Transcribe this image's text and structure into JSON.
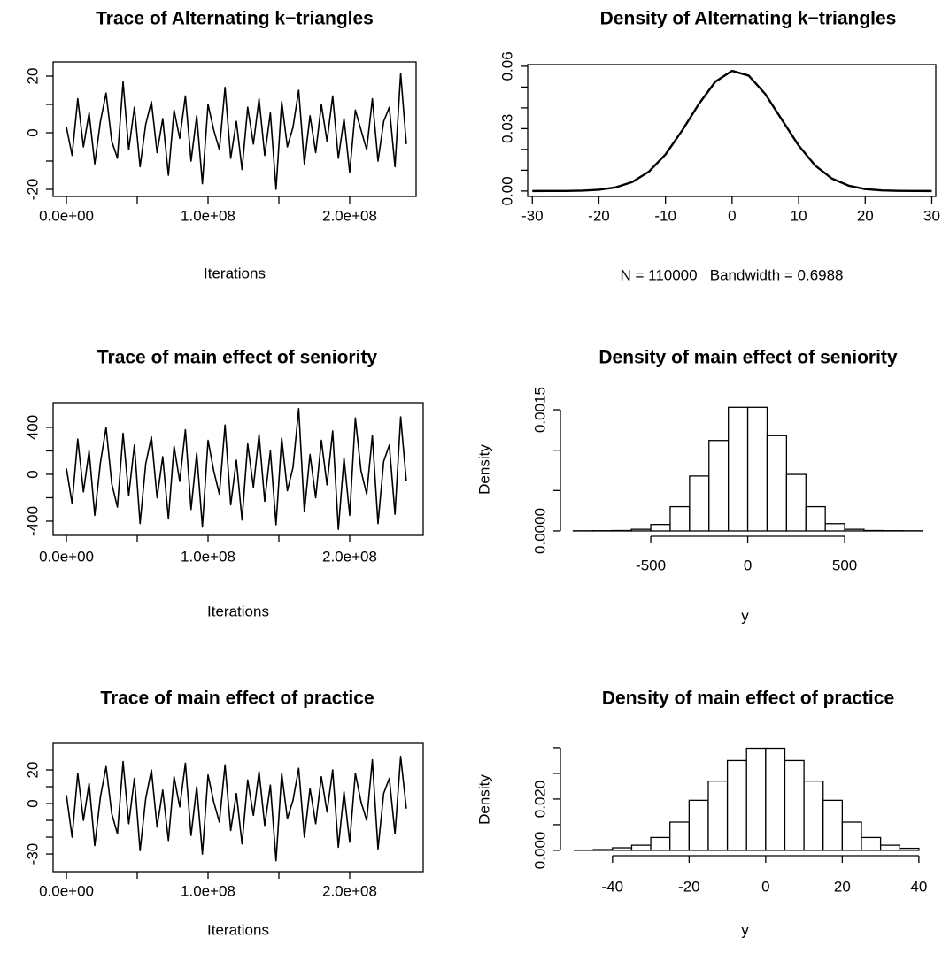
{
  "chart_data": [
    {
      "type": "line",
      "title": "Trace of Alternating k−triangles",
      "xlabel": "Iterations",
      "color": "#000000",
      "x": [
        0,
        4000000.0,
        8000000.0,
        12000000.0,
        16000000.0,
        20000000.0,
        24000000.0,
        28000000.0,
        32000000.0,
        36000000.0,
        40000000.0,
        44000000.0,
        48000000.0,
        52000000.0,
        56000000.0,
        60000000.0,
        64000000.0,
        68000000.0,
        72000000.0,
        76000000.0,
        80000000.0,
        84000000.0,
        88000000.0,
        92000000.0,
        96000000.0,
        100000000.0,
        104000000.0,
        108000000.0,
        112000000.0,
        116000000.0,
        120000000.0,
        124000000.0,
        128000000.0,
        132000000.0,
        136000000.0,
        140000000.0,
        144000000.0,
        148000000.0,
        152000000.0,
        156000000.0,
        160000000.0,
        164000000.0,
        168000000.0,
        172000000.0,
        176000000.0,
        180000000.0,
        184000000.0,
        188000000.0,
        192000000.0,
        196000000.0,
        200000000.0,
        204000000.0,
        208000000.0,
        212000000.0,
        216000000.0,
        220000000.0,
        224000000.0,
        228000000.0,
        232000000.0,
        236000000.0,
        240000000.0
      ],
      "values": [
        2,
        -8,
        12,
        -5,
        7,
        -11,
        4,
        14,
        -3,
        -9,
        18,
        -6,
        9,
        -12,
        3,
        11,
        -7,
        5,
        -15,
        8,
        -2,
        13,
        -10,
        6,
        -18,
        10,
        1,
        -6,
        16,
        -9,
        4,
        -13,
        9,
        -4,
        12,
        -8,
        7,
        -20,
        11,
        -5,
        2,
        15,
        -11,
        6,
        -7,
        10,
        -3,
        13,
        -9,
        5,
        -14,
        8,
        1,
        -6,
        12,
        -10,
        4,
        9,
        -12,
        21,
        -4
      ],
      "xlim": [
        -9400000,
        246900000
      ],
      "ylim": [
        -22.5,
        25
      ],
      "xticks": [
        {
          "value": 0,
          "label": "0.0e+00"
        },
        {
          "value": 100000000,
          "label": "1.0e+08"
        },
        {
          "value": 200000000,
          "label": "2.0e+08"
        }
      ],
      "xminorticks": [
        50000000,
        150000000
      ],
      "yticks": [
        -20,
        0,
        20
      ],
      "yminorticks": [
        -10,
        10
      ]
    },
    {
      "type": "line",
      "title": "Density of Alternating k−triangles",
      "xlabel": "N = 110000   Bandwidth = 0.6988",
      "color": "#000000",
      "x": [
        -30,
        -27.5,
        -25,
        -22.5,
        -20,
        -17.5,
        -15,
        -12.5,
        -10,
        -7.5,
        -5,
        -2.5,
        0,
        2.5,
        5,
        7.5,
        10,
        12.5,
        15,
        17.5,
        20,
        22.5,
        25,
        27.5,
        30
      ],
      "values": [
        2.5e-06,
        1.2e-05,
        5e-05,
        0.00019,
        0.00062,
        0.00175,
        0.0043,
        0.0093,
        0.0176,
        0.0291,
        0.0418,
        0.0526,
        0.0578,
        0.0555,
        0.0466,
        0.0342,
        0.0219,
        0.0122,
        0.006,
        0.0026,
        0.00095,
        0.00031,
        9e-05,
        2e-05,
        5e-06
      ],
      "xlim": [
        -30.7,
        30.6
      ],
      "ylim": [
        -0.0026,
        0.0608
      ],
      "xticks": [
        -30,
        -20,
        -10,
        0,
        10,
        20,
        30
      ],
      "yticks": [
        {
          "value": 0,
          "label": "0.00"
        },
        {
          "value": 0.03,
          "label": "0.03"
        },
        {
          "value": 0.06,
          "label": "0.06"
        }
      ],
      "yminorticks": [
        0.01,
        0.02,
        0.04,
        0.05
      ]
    },
    {
      "type": "line",
      "title": "Trace of main effect of seniority",
      "xlabel": "Iterations",
      "color": "#000000",
      "x": [
        0,
        4000000.0,
        8000000.0,
        12000000.0,
        16000000.0,
        20000000.0,
        24000000.0,
        28000000.0,
        32000000.0,
        36000000.0,
        40000000.0,
        44000000.0,
        48000000.0,
        52000000.0,
        56000000.0,
        60000000.0,
        64000000.0,
        68000000.0,
        72000000.0,
        76000000.0,
        80000000.0,
        84000000.0,
        88000000.0,
        92000000.0,
        96000000.0,
        100000000.0,
        104000000.0,
        108000000.0,
        112000000.0,
        116000000.0,
        120000000.0,
        124000000.0,
        128000000.0,
        132000000.0,
        136000000.0,
        140000000.0,
        144000000.0,
        148000000.0,
        152000000.0,
        156000000.0,
        160000000.0,
        164000000.0,
        168000000.0,
        172000000.0,
        176000000.0,
        180000000.0,
        184000000.0,
        188000000.0,
        192000000.0,
        196000000.0,
        200000000.0,
        204000000.0,
        208000000.0,
        212000000.0,
        216000000.0,
        220000000.0,
        224000000.0,
        228000000.0,
        232000000.0,
        236000000.0,
        240000000.0
      ],
      "values": [
        50,
        -250,
        300,
        -150,
        200,
        -350,
        100,
        400,
        -80,
        -280,
        350,
        -180,
        250,
        -420,
        90,
        320,
        -200,
        150,
        -380,
        240,
        -60,
        380,
        -300,
        180,
        -450,
        290,
        30,
        -170,
        420,
        -260,
        120,
        -390,
        260,
        -110,
        340,
        -230,
        200,
        -430,
        310,
        -140,
        60,
        560,
        -320,
        170,
        -200,
        290,
        -90,
        370,
        -470,
        140,
        -350,
        480,
        30,
        -170,
        330,
        -420,
        110,
        250,
        -340,
        490,
        -60
      ],
      "xlim": [
        -9400000,
        251900000
      ],
      "ylim": [
        -521,
        611
      ],
      "xticks": [
        {
          "value": 0,
          "label": "0.0e+00"
        },
        {
          "value": 100000000,
          "label": "1.0e+08"
        },
        {
          "value": 200000000,
          "label": "2.0e+08"
        }
      ],
      "xminorticks": [
        50000000,
        150000000
      ],
      "yticks": [
        -400,
        0,
        400
      ],
      "yminorticks": [
        -200,
        200
      ]
    },
    {
      "type": "histogram",
      "title": "Density of main effect of seniority",
      "xlabel": "y",
      "ylabel": "Density",
      "color": "#000000",
      "bins": [
        -900,
        -800,
        -700,
        -600,
        -500,
        -400,
        -300,
        -200,
        -100,
        0,
        100,
        200,
        300,
        400,
        500,
        600,
        700,
        800,
        900
      ],
      "values": [
        2e-06,
        3e-06,
        5e-06,
        2e-05,
        8e-05,
        0.0003,
        0.00068,
        0.00112,
        0.00153,
        0.00153,
        0.00118,
        0.0007,
        0.0003,
        9e-05,
        2e-05,
        5e-06,
        3e-06,
        2e-06
      ],
      "xlim": [
        -966,
        938
      ],
      "ylim": [
        -6.6e-05,
        0.001588
      ],
      "xticks": [
        -500,
        0,
        500
      ],
      "yticks": [
        {
          "value": 0,
          "label": "0.0000"
        },
        {
          "value": 0.0015,
          "label": "0.0015"
        }
      ],
      "yminorticks": [
        0.0005,
        0.001
      ]
    },
    {
      "type": "line",
      "title": "Trace of main effect of practice",
      "xlabel": "Iterations",
      "color": "#000000",
      "x": [
        0,
        4000000.0,
        8000000.0,
        12000000.0,
        16000000.0,
        20000000.0,
        24000000.0,
        28000000.0,
        32000000.0,
        36000000.0,
        40000000.0,
        44000000.0,
        48000000.0,
        52000000.0,
        56000000.0,
        60000000.0,
        64000000.0,
        68000000.0,
        72000000.0,
        76000000.0,
        80000000.0,
        84000000.0,
        88000000.0,
        92000000.0,
        96000000.0,
        100000000.0,
        104000000.0,
        108000000.0,
        112000000.0,
        116000000.0,
        120000000.0,
        124000000.0,
        128000000.0,
        132000000.0,
        136000000.0,
        140000000.0,
        144000000.0,
        148000000.0,
        152000000.0,
        156000000.0,
        160000000.0,
        164000000.0,
        168000000.0,
        172000000.0,
        176000000.0,
        180000000.0,
        184000000.0,
        188000000.0,
        192000000.0,
        196000000.0,
        200000000.0,
        204000000.0,
        208000000.0,
        212000000.0,
        216000000.0,
        220000000.0,
        224000000.0,
        228000000.0,
        232000000.0,
        236000000.0,
        240000000.0
      ],
      "values": [
        5,
        -20,
        18,
        -10,
        12,
        -25,
        4,
        22,
        -6,
        -18,
        25,
        -12,
        15,
        -28,
        3,
        20,
        -14,
        8,
        -22,
        16,
        -2,
        24,
        -19,
        10,
        -30,
        17,
        1,
        -11,
        23,
        -16,
        6,
        -24,
        14,
        -7,
        19,
        -13,
        11,
        -34,
        18,
        -9,
        2,
        21,
        -20,
        9,
        -12,
        16,
        -5,
        20,
        -26,
        7,
        -23,
        18,
        1,
        -10,
        26,
        -27,
        6,
        15,
        -18,
        28,
        -3
      ],
      "xlim": [
        -9400000,
        251900000
      ],
      "ylim": [
        -40.5,
        35.8
      ],
      "xticks": [
        {
          "value": 0,
          "label": "0.0e+00"
        },
        {
          "value": 100000000,
          "label": "1.0e+08"
        },
        {
          "value": 200000000,
          "label": "2.0e+08"
        }
      ],
      "xminorticks": [
        50000000,
        150000000
      ],
      "yticks": [
        -30,
        0,
        20
      ],
      "yminorticks": [
        -20,
        -10,
        10
      ]
    },
    {
      "type": "histogram",
      "title": "Density of main effect of practice",
      "xlabel": "y",
      "ylabel": "Density",
      "color": "#000000",
      "bins": [
        -50,
        -45,
        -40,
        -35,
        -30,
        -25,
        -20,
        -15,
        -10,
        -5,
        0,
        5,
        10,
        15,
        20,
        25,
        30,
        35,
        40
      ],
      "values": [
        0.0001,
        0.0003,
        0.001,
        0.002,
        0.005,
        0.011,
        0.0195,
        0.027,
        0.035,
        0.0398,
        0.0398,
        0.035,
        0.027,
        0.0195,
        0.011,
        0.005,
        0.002,
        0.0008
      ],
      "xlim": [
        -53.6,
        42.8
      ],
      "ylim": [
        -0.0021,
        0.0417
      ],
      "xticks": [
        -40,
        -20,
        0,
        20,
        40
      ],
      "yticks": [
        {
          "value": 0,
          "label": "0.000"
        },
        {
          "value": 0.02,
          "label": "0.020"
        }
      ],
      "yminorticks": [
        0.01,
        0.03,
        0.04
      ]
    }
  ]
}
